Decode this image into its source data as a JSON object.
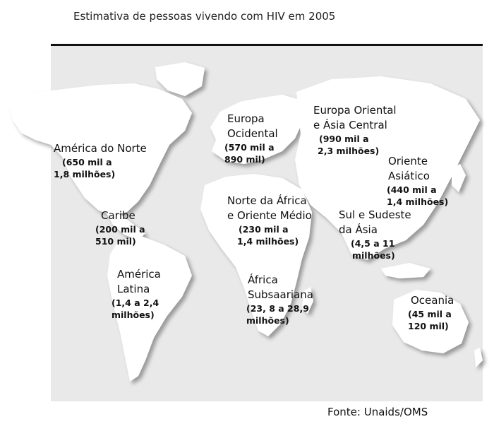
{
  "title": "Estimativa de pessoas vivendo com HIV em 2005",
  "source": "Fonte: Unaids/OMS",
  "regions": [
    {
      "name_lines": [
        "América do Norte"
      ],
      "range_lines": [
        "(650 mil a",
        "1,8 milhões)"
      ]
    },
    {
      "name_lines": [
        "Caribe"
      ],
      "range_lines": [
        "(200 mil a",
        "510 mil)"
      ]
    },
    {
      "name_lines": [
        "América",
        "Latina"
      ],
      "range_lines": [
        "(1,4 a 2,4",
        "milhões)"
      ]
    },
    {
      "name_lines": [
        "Europa",
        "Ocidental"
      ],
      "range_lines": [
        "(570 mil a",
        "890 mil)"
      ]
    },
    {
      "name_lines": [
        "Europa Oriental",
        "e Ásia Central"
      ],
      "range_lines": [
        "(990 mil a",
        "2,3 milhões)"
      ]
    },
    {
      "name_lines": [
        "Oriente",
        "Asiático"
      ],
      "range_lines": [
        "(440 mil a",
        "1,4 milhões)"
      ]
    },
    {
      "name_lines": [
        "Norte da África",
        "e Oriente Médio"
      ],
      "range_lines": [
        "(230 mil a",
        "1,4 milhões)"
      ]
    },
    {
      "name_lines": [
        "Sul e Sudeste",
        "da Ásia"
      ],
      "range_lines": [
        "(4,5 a 11",
        "milhões)"
      ]
    },
    {
      "name_lines": [
        "África",
        "Subsaariana"
      ],
      "range_lines": [
        "(23, 8 a 28,9",
        "milhões)"
      ]
    },
    {
      "name_lines": [
        "Oceania"
      ],
      "range_lines": [
        "(45 mil a",
        "120 mil)"
      ]
    }
  ],
  "colors": {
    "map_background": "#e9e9e9",
    "land": "#ffffff",
    "land_shadow": "#c9c9c9",
    "border": "#111111"
  }
}
